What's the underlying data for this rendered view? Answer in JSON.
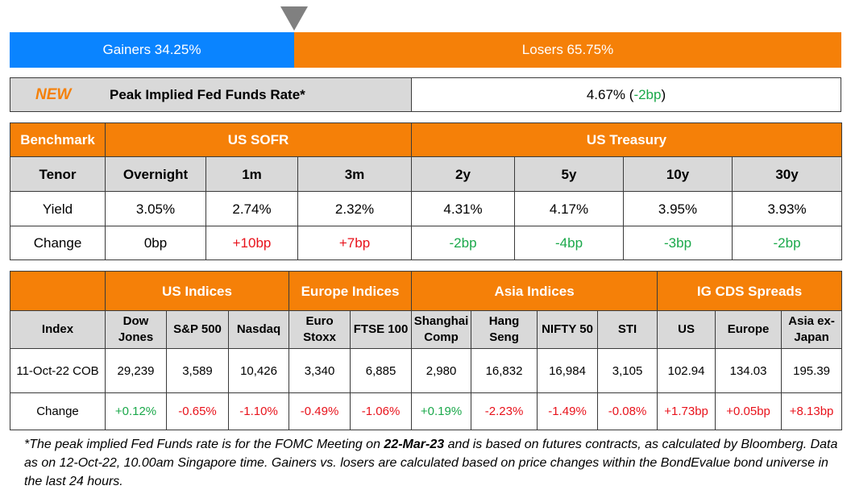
{
  "breadth": {
    "gainers_label": "Gainers 34.25%",
    "losers_label": "Losers 65.75%",
    "gainers_pct": 34.25,
    "losers_pct": 65.75,
    "gainers_color": "#0a84ff",
    "losers_color": "#f58008",
    "marker_icon": "triangle-down-icon"
  },
  "fed": {
    "badge": "NEW",
    "label": "Peak Implied Fed Funds Rate*",
    "value": "4.67%",
    "paren_open": " (",
    "change": "-2bp",
    "paren_close": ")"
  },
  "rates": {
    "group_headers": [
      "Benchmark",
      "US SOFR",
      "US Treasury"
    ],
    "tenor_label": "Tenor",
    "tenors": [
      "Overnight",
      "1m",
      "3m",
      "2y",
      "5y",
      "10y",
      "30y"
    ],
    "yield_label": "Yield",
    "yields": [
      "3.05%",
      "2.74%",
      "2.32%",
      "4.31%",
      "4.17%",
      "3.95%",
      "3.93%"
    ],
    "change_label": "Change",
    "changes": [
      {
        "text": "0bp",
        "dir": "neu"
      },
      {
        "text": "+10bp",
        "dir": "neg"
      },
      {
        "text": "+7bp",
        "dir": "neg"
      },
      {
        "text": "-2bp",
        "dir": "pos"
      },
      {
        "text": "-4bp",
        "dir": "pos"
      },
      {
        "text": "-3bp",
        "dir": "pos"
      },
      {
        "text": "-2bp",
        "dir": "pos"
      }
    ]
  },
  "indices": {
    "group_headers": [
      "",
      "US Indices",
      "Europe Indices",
      "Asia Indices",
      "IG CDS Spreads"
    ],
    "index_label": "Index",
    "names": [
      [
        "Dow",
        "Jones"
      ],
      [
        "S&P 500"
      ],
      [
        "Nasdaq"
      ],
      [
        "Euro",
        "Stoxx"
      ],
      [
        "FTSE 100"
      ],
      [
        "Shanghai",
        "Comp"
      ],
      [
        "Hang",
        "Seng"
      ],
      [
        "NIFTY 50"
      ],
      [
        "STI"
      ],
      [
        "US"
      ],
      [
        "Europe"
      ],
      [
        "Asia ex-",
        "Japan"
      ]
    ],
    "date_label": "11-Oct-22 COB",
    "values": [
      "29,239",
      "3,589",
      "10,426",
      "3,340",
      "6,885",
      "2,980",
      "16,832",
      "16,984",
      "3,105",
      "102.94",
      "134.03",
      "195.39"
    ],
    "change_label": "Change",
    "changes": [
      {
        "text": "+0.12%",
        "dir": "pos"
      },
      {
        "text": "-0.65%",
        "dir": "neg"
      },
      {
        "text": "-1.10%",
        "dir": "neg"
      },
      {
        "text": "-0.49%",
        "dir": "neg"
      },
      {
        "text": "-1.06%",
        "dir": "neg"
      },
      {
        "text": "+0.19%",
        "dir": "pos"
      },
      {
        "text": "-2.23%",
        "dir": "neg"
      },
      {
        "text": "-1.49%",
        "dir": "neg"
      },
      {
        "text": "-0.08%",
        "dir": "neg"
      },
      {
        "text": "+1.73bp",
        "dir": "neg"
      },
      {
        "text": "+0.05bp",
        "dir": "neg"
      },
      {
        "text": "+8.13bp",
        "dir": "neg"
      }
    ]
  },
  "footnote": {
    "part1": "*The peak implied Fed Funds rate is for the FOMC Meeting on ",
    "bold": "22-Mar-23",
    "part2": " and is based on futures contracts, as calculated by Bloomberg. Data as on 12-Oct-22, 10.00am Singapore time. Gainers vs. losers are calculated based on price changes within the BondEvalue bond universe in the last 24 hours."
  },
  "colors": {
    "accent_orange": "#f58008",
    "header_grey": "#d9d9d9",
    "positive_green": "#1aa84a",
    "negative_red": "#e8121b"
  }
}
